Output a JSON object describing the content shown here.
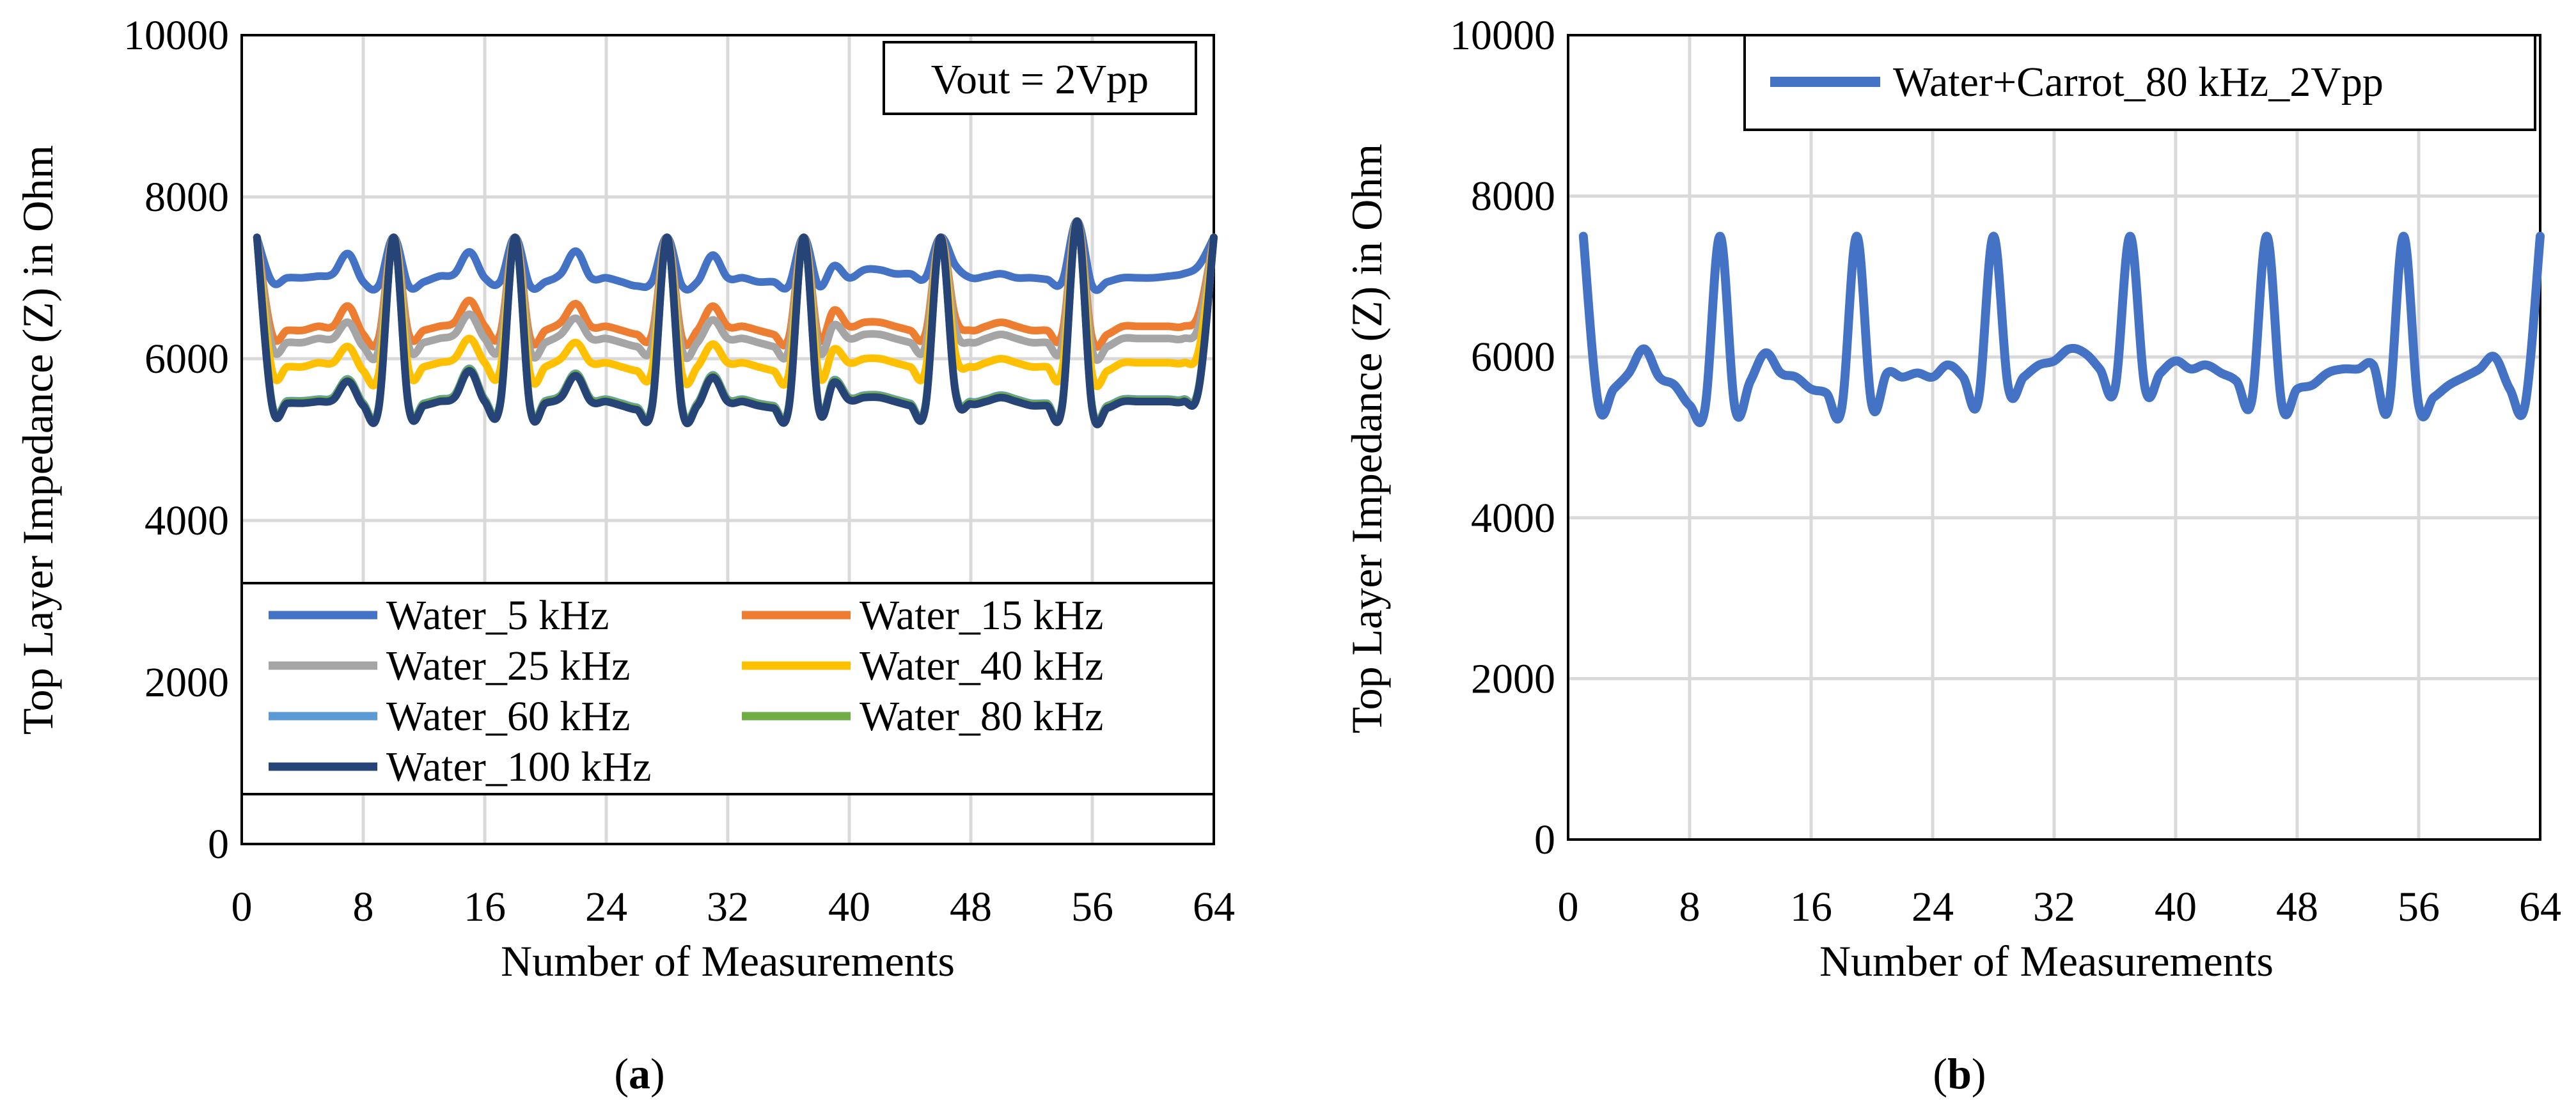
{
  "figure": {
    "caption_a_letter": "a",
    "caption_b_letter": "b"
  },
  "chart_data": [
    {
      "panel": "a",
      "type": "line",
      "title": "",
      "annotation": "Vout = 2Vpp",
      "xlabel": "Number of Measurements",
      "ylabel": "Top Layer Impedance (Z) in Ohm",
      "xlim": [
        0,
        64
      ],
      "ylim": [
        0,
        10000
      ],
      "xticks": [
        0,
        8,
        16,
        24,
        32,
        40,
        48,
        56,
        64
      ],
      "yticks": [
        0,
        2000,
        4000,
        6000,
        8000,
        10000
      ],
      "grid": true,
      "legend_position": "bottom-center",
      "x": [
        1,
        2,
        3,
        4,
        5,
        6,
        7,
        8,
        9,
        10,
        11,
        12,
        13,
        14,
        15,
        16,
        17,
        18,
        19,
        20,
        21,
        22,
        23,
        24,
        25,
        26,
        27,
        28,
        29,
        30,
        31,
        32,
        33,
        34,
        35,
        36,
        37,
        38,
        39,
        40,
        41,
        42,
        43,
        44,
        45,
        46,
        47,
        48,
        49,
        50,
        51,
        52,
        53,
        54,
        55,
        56,
        57,
        58,
        59,
        60,
        61,
        62,
        63,
        64
      ],
      "series": [
        {
          "name": "Water_5 kHz",
          "color": "#4472C4",
          "values": [
            7500,
            6950,
            7000,
            7000,
            7020,
            7050,
            7300,
            6950,
            6900,
            7500,
            6900,
            6950,
            7020,
            7050,
            7320,
            7000,
            6950,
            7500,
            6900,
            6950,
            7050,
            7330,
            7000,
            7000,
            6950,
            6900,
            6950,
            7500,
            6900,
            6950,
            7280,
            7000,
            7000,
            6950,
            6950,
            6900,
            7500,
            6900,
            7150,
            7000,
            7100,
            7100,
            7050,
            7050,
            7000,
            7500,
            7150,
            7000,
            7020,
            7050,
            7000,
            7000,
            6980,
            6950,
            7700,
            6900,
            6950,
            7000,
            7000,
            7000,
            7020,
            7050,
            7150,
            7500
          ]
        },
        {
          "name": "Water_15 kHz",
          "color": "#ED7D31",
          "values": [
            7500,
            6300,
            6350,
            6350,
            6400,
            6400,
            6650,
            6300,
            6250,
            7500,
            6300,
            6350,
            6400,
            6450,
            6720,
            6400,
            6300,
            7500,
            6250,
            6350,
            6450,
            6680,
            6400,
            6400,
            6350,
            6300,
            6300,
            7500,
            6250,
            6350,
            6650,
            6400,
            6400,
            6350,
            6300,
            6250,
            7500,
            6250,
            6600,
            6400,
            6450,
            6450,
            6400,
            6350,
            6300,
            7500,
            6500,
            6350,
            6400,
            6450,
            6400,
            6350,
            6350,
            6300,
            7700,
            6250,
            6300,
            6400,
            6400,
            6400,
            6400,
            6400,
            6550,
            7500
          ]
        },
        {
          "name": "Water_25 kHz",
          "color": "#A5A5A5",
          "values": [
            7500,
            6150,
            6200,
            6200,
            6250,
            6250,
            6450,
            6150,
            6100,
            7500,
            6150,
            6200,
            6250,
            6300,
            6550,
            6250,
            6150,
            7500,
            6100,
            6200,
            6300,
            6500,
            6250,
            6250,
            6200,
            6150,
            6150,
            7500,
            6100,
            6200,
            6480,
            6250,
            6250,
            6200,
            6150,
            6100,
            7500,
            6100,
            6420,
            6250,
            6300,
            6300,
            6250,
            6200,
            6150,
            7500,
            6350,
            6200,
            6250,
            6300,
            6250,
            6200,
            6200,
            6150,
            7700,
            6100,
            6150,
            6250,
            6250,
            6250,
            6250,
            6250,
            6400,
            7500
          ]
        },
        {
          "name": "Water_40 kHz",
          "color": "#FFC000",
          "values": [
            7500,
            5850,
            5900,
            5900,
            5950,
            5950,
            6150,
            5850,
            5800,
            7500,
            5850,
            5900,
            5950,
            6000,
            6250,
            5950,
            5850,
            7500,
            5800,
            5900,
            6000,
            6200,
            5950,
            5950,
            5900,
            5850,
            5850,
            7500,
            5800,
            5900,
            6180,
            5950,
            5950,
            5900,
            5850,
            5800,
            7500,
            5800,
            6120,
            5950,
            6000,
            6000,
            5950,
            5900,
            5850,
            7500,
            6050,
            5900,
            5950,
            6000,
            5950,
            5900,
            5900,
            5850,
            7700,
            5800,
            5850,
            5950,
            5950,
            5950,
            5950,
            5950,
            6100,
            7500
          ]
        },
        {
          "name": "Water_60 kHz",
          "color": "#5B9BD5",
          "values": [
            7500,
            5450,
            5480,
            5480,
            5500,
            5520,
            5750,
            5450,
            5400,
            7500,
            5420,
            5450,
            5500,
            5550,
            5880,
            5500,
            5450,
            7500,
            5400,
            5480,
            5550,
            5820,
            5500,
            5500,
            5450,
            5400,
            5420,
            7500,
            5400,
            5450,
            5800,
            5500,
            5500,
            5450,
            5420,
            5400,
            7500,
            5400,
            5740,
            5520,
            5550,
            5550,
            5500,
            5450,
            5420,
            7500,
            5600,
            5470,
            5500,
            5550,
            5500,
            5450,
            5450,
            5420,
            7700,
            5400,
            5420,
            5500,
            5500,
            5500,
            5500,
            5500,
            5650,
            7500
          ]
        },
        {
          "name": "Water_80 kHz",
          "color": "#70AD47",
          "values": [
            7500,
            5440,
            5470,
            5470,
            5490,
            5510,
            5740,
            5440,
            5390,
            7500,
            5410,
            5440,
            5490,
            5540,
            5870,
            5490,
            5440,
            7500,
            5390,
            5470,
            5540,
            5810,
            5490,
            5490,
            5440,
            5390,
            5410,
            7500,
            5390,
            5440,
            5790,
            5490,
            5490,
            5440,
            5410,
            5390,
            7500,
            5390,
            5730,
            5510,
            5540,
            5540,
            5490,
            5440,
            5410,
            7500,
            5590,
            5460,
            5490,
            5540,
            5490,
            5440,
            5440,
            5410,
            7700,
            5390,
            5410,
            5490,
            5490,
            5490,
            5490,
            5490,
            5640,
            7500
          ]
        },
        {
          "name": "Water_100 kHz",
          "color": "#264478",
          "values": [
            7500,
            5420,
            5450,
            5450,
            5470,
            5490,
            5720,
            5420,
            5370,
            7500,
            5390,
            5420,
            5470,
            5520,
            5850,
            5470,
            5420,
            7500,
            5370,
            5450,
            5520,
            5790,
            5470,
            5470,
            5420,
            5370,
            5390,
            7500,
            5370,
            5420,
            5770,
            5470,
            5470,
            5420,
            5390,
            5370,
            7500,
            5370,
            5710,
            5490,
            5520,
            5520,
            5470,
            5420,
            5390,
            7500,
            5570,
            5440,
            5470,
            5520,
            5470,
            5420,
            5420,
            5390,
            7700,
            5370,
            5390,
            5470,
            5470,
            5470,
            5470,
            5470,
            5620,
            7500
          ]
        }
      ]
    },
    {
      "panel": "b",
      "type": "line",
      "title": "",
      "xlabel": "Number of Measurements",
      "ylabel": "Top Layer Impedance (Z) in Ohm",
      "xlim": [
        0,
        64
      ],
      "ylim": [
        0,
        10000
      ],
      "xticks": [
        0,
        8,
        16,
        24,
        32,
        40,
        48,
        56,
        64
      ],
      "yticks": [
        0,
        2000,
        4000,
        6000,
        8000,
        10000
      ],
      "grid": true,
      "legend_position": "top-right",
      "x": [
        1,
        2,
        3,
        4,
        5,
        6,
        7,
        8,
        9,
        10,
        11,
        12,
        13,
        14,
        15,
        16,
        17,
        18,
        19,
        20,
        21,
        22,
        23,
        24,
        25,
        26,
        27,
        28,
        29,
        30,
        31,
        32,
        33,
        34,
        35,
        36,
        37,
        38,
        39,
        40,
        41,
        42,
        43,
        44,
        45,
        46,
        47,
        48,
        49,
        50,
        51,
        52,
        53,
        54,
        55,
        56,
        57,
        58,
        59,
        60,
        61,
        62,
        63,
        64
      ],
      "series": [
        {
          "name": "Water+Carrot_80 kHz_2Vpp",
          "color": "#4472C4",
          "values": [
            7500,
            5400,
            5600,
            5800,
            6100,
            5750,
            5650,
            5400,
            5350,
            7500,
            5350,
            5700,
            6050,
            5800,
            5750,
            5600,
            5550,
            5350,
            7500,
            5400,
            5800,
            5750,
            5800,
            5750,
            5900,
            5750,
            5450,
            7500,
            5600,
            5750,
            5900,
            5950,
            6100,
            6050,
            5850,
            5600,
            7500,
            5600,
            5800,
            5950,
            5850,
            5900,
            5800,
            5700,
            5450,
            7500,
            5400,
            5600,
            5650,
            5800,
            5850,
            5850,
            5900,
            5350,
            7500,
            5400,
            5500,
            5650,
            5750,
            5850,
            6000,
            5600,
            5400,
            7500
          ]
        }
      ]
    }
  ]
}
